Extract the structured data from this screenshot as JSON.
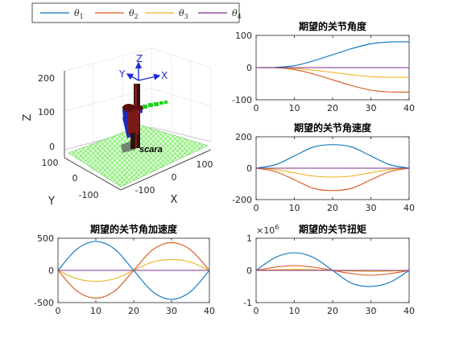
{
  "legend": {
    "entries": [
      {
        "sym": "θ",
        "sub": "1",
        "color": "#0072BD"
      },
      {
        "sym": "θ",
        "sub": "2",
        "color": "#D95319"
      },
      {
        "sym": "θ",
        "sub": "3",
        "color": "#EDB120"
      },
      {
        "sym": "θ",
        "sub": "4",
        "color": "#7E2F8E"
      }
    ]
  },
  "robot_view": {
    "x_label": "X",
    "y_label": "Y",
    "z_label": "Z",
    "z_ticks": [
      "0",
      "100",
      "200"
    ],
    "x_ticks": [
      "-100",
      "0",
      "100"
    ],
    "y_ticks": [
      "100",
      "0",
      "-100"
    ],
    "frame_x": "X",
    "frame_y": "Y",
    "frame_z": "Z",
    "robot_name": "scara"
  },
  "chart_data": [
    {
      "type": "line",
      "title": "期望的关节角度",
      "xlim": [
        0,
        40
      ],
      "ylim": [
        -100,
        100
      ],
      "x_ticks": [
        0,
        10,
        20,
        30,
        40
      ],
      "y_ticks": [
        -100,
        0,
        100
      ],
      "series": [
        {
          "x": [
            0,
            5,
            10,
            15,
            20,
            25,
            30,
            35,
            40
          ],
          "values": [
            0,
            0.4,
            6,
            21,
            40,
            59,
            74,
            79.6,
            80
          ]
        },
        {
          "x": [
            0,
            5,
            10,
            15,
            20,
            25,
            30,
            35,
            40
          ],
          "values": [
            0,
            -0.4,
            -6,
            -20,
            -38,
            -56,
            -70,
            -75.6,
            -76
          ]
        },
        {
          "x": [
            0,
            5,
            10,
            15,
            20,
            25,
            30,
            35,
            40
          ],
          "values": [
            0,
            -0.2,
            -2.4,
            -8,
            -15,
            -22,
            -28,
            -30,
            -30
          ]
        },
        {
          "x": [
            0,
            5,
            10,
            15,
            20,
            25,
            30,
            35,
            40
          ],
          "values": [
            0,
            0,
            0,
            0,
            0,
            0,
            0,
            0,
            0
          ]
        }
      ]
    },
    {
      "type": "line",
      "title": "期望的关节角速度",
      "xlim": [
        0,
        40
      ],
      "ylim": [
        -200,
        200
      ],
      "x_ticks": [
        0,
        10,
        20,
        30,
        40
      ],
      "y_ticks": [
        -200,
        0,
        200
      ],
      "series": [
        {
          "x": [
            0,
            5,
            10,
            15,
            20,
            25,
            30,
            35,
            40
          ],
          "values": [
            0,
            22,
            78,
            135,
            150,
            135,
            78,
            22,
            0
          ]
        },
        {
          "x": [
            0,
            5,
            10,
            15,
            20,
            25,
            30,
            35,
            40
          ],
          "values": [
            0,
            -21,
            -74,
            -128,
            -143,
            -128,
            -74,
            -21,
            0
          ]
        },
        {
          "x": [
            0,
            5,
            10,
            15,
            20,
            25,
            30,
            35,
            40
          ],
          "values": [
            0,
            -8,
            -29,
            -50,
            -56,
            -50,
            -29,
            -8,
            0
          ]
        },
        {
          "x": [
            0,
            5,
            10,
            15,
            20,
            25,
            30,
            35,
            40
          ],
          "values": [
            0,
            0,
            0,
            0,
            0,
            0,
            0,
            0,
            0
          ]
        }
      ]
    },
    {
      "type": "line",
      "title": "期望的关节角加速度",
      "xlim": [
        0,
        40
      ],
      "ylim": [
        -500,
        500
      ],
      "x_ticks": [
        0,
        10,
        20,
        30,
        40
      ],
      "y_ticks": [
        -500,
        0,
        500
      ],
      "series": [
        {
          "x": [
            0,
            5,
            10,
            15,
            20,
            25,
            30,
            35,
            40
          ],
          "values": [
            0,
            330,
            450,
            330,
            0,
            -330,
            -450,
            -330,
            0
          ]
        },
        {
          "x": [
            0,
            5,
            10,
            15,
            20,
            25,
            30,
            35,
            40
          ],
          "values": [
            0,
            -320,
            -430,
            -320,
            0,
            320,
            430,
            320,
            0
          ]
        },
        {
          "x": [
            0,
            5,
            10,
            15,
            20,
            25,
            30,
            35,
            40
          ],
          "values": [
            0,
            -130,
            -170,
            -130,
            0,
            130,
            170,
            130,
            0
          ]
        },
        {
          "x": [
            0,
            5,
            10,
            15,
            20,
            25,
            30,
            35,
            40
          ],
          "values": [
            0,
            0,
            0,
            0,
            0,
            0,
            0,
            0,
            0
          ]
        }
      ]
    },
    {
      "type": "line",
      "title": "期望的关节扭矩",
      "multiplier_base": "×10",
      "multiplier_exp": "6",
      "xlim": [
        0,
        40
      ],
      "ylim": [
        -1,
        1
      ],
      "x_ticks": [
        0,
        10,
        20,
        30,
        40
      ],
      "y_ticks": [
        -1,
        0,
        1
      ],
      "series": [
        {
          "x": [
            0,
            5,
            10,
            15,
            20,
            25,
            30,
            35,
            40
          ],
          "values": [
            0,
            0.4,
            0.55,
            0.4,
            0,
            -0.4,
            -0.5,
            -0.37,
            0
          ]
        },
        {
          "x": [
            0,
            5,
            10,
            15,
            20,
            25,
            30,
            35,
            40
          ],
          "values": [
            0,
            0.1,
            0.15,
            0.1,
            0,
            -0.1,
            -0.15,
            -0.1,
            0
          ]
        },
        {
          "x": [
            0,
            5,
            10,
            15,
            20,
            25,
            30,
            35,
            40
          ],
          "values": [
            0,
            0.02,
            0.03,
            0.02,
            0,
            -0.02,
            -0.03,
            -0.02,
            0
          ]
        },
        {
          "x": [
            0,
            5,
            10,
            15,
            20,
            25,
            30,
            35,
            40
          ],
          "values": [
            0,
            0,
            0,
            0,
            0,
            0,
            0,
            0,
            0
          ]
        }
      ]
    }
  ]
}
